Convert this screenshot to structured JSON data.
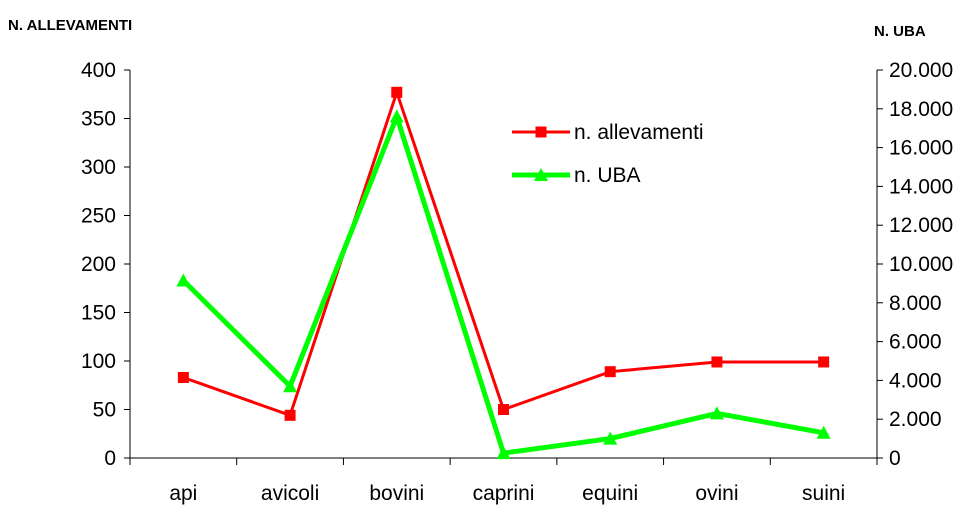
{
  "chart_data": {
    "type": "line",
    "categories": [
      "api",
      "avicoli",
      "bovini",
      "caprini",
      "equini",
      "ovini",
      "suini"
    ],
    "series": [
      {
        "name": "n. allevamenti",
        "axis": "left",
        "color": "#ff0000",
        "marker": "square",
        "values": [
          83,
          44,
          377,
          50,
          89,
          99,
          99
        ]
      },
      {
        "name": "n. UBA",
        "axis": "right",
        "color": "#00ff00",
        "marker": "triangle",
        "values": [
          9150,
          3700,
          17600,
          250,
          1000,
          2300,
          1300
        ]
      }
    ],
    "y_left": {
      "label": "N. ALLEVAMENTI",
      "range": [
        0,
        400
      ],
      "ticks": [
        0,
        50,
        100,
        150,
        200,
        250,
        300,
        350,
        400
      ],
      "tick_labels": [
        "0",
        "50",
        "100",
        "150",
        "200",
        "250",
        "300",
        "350",
        "400"
      ]
    },
    "y_right": {
      "label": "N. UBA",
      "range": [
        0,
        20000
      ],
      "ticks": [
        0,
        2000,
        4000,
        6000,
        8000,
        10000,
        12000,
        14000,
        16000,
        18000,
        20000
      ],
      "tick_labels": [
        "0",
        "2.000",
        "4.000",
        "6.000",
        "8.000",
        "10.000",
        "12.000",
        "14.000",
        "16.000",
        "18.000",
        "20.000"
      ]
    },
    "grid": false,
    "legend": {
      "position": "top-right"
    }
  }
}
